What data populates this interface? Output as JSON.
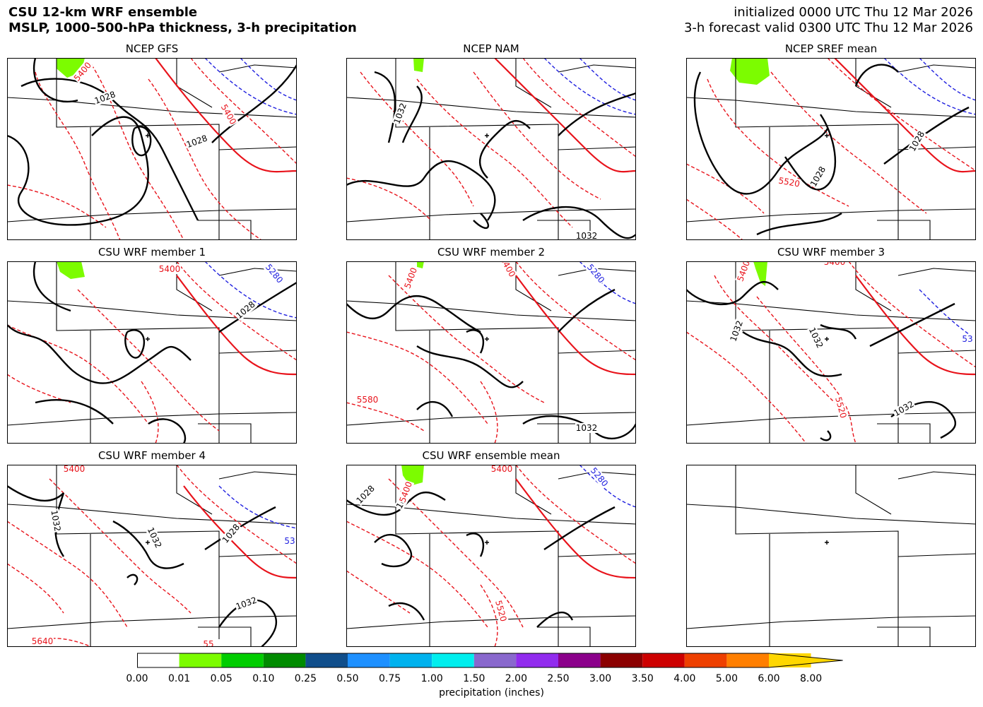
{
  "header": {
    "title_line1": "CSU 12-km WRF ensemble",
    "title_line2": "MSLP, 1000–500-hPa thickness, 3-h precipitation",
    "init_line": "initialized 0000 UTC Thu 12 Mar 2026",
    "valid_line": "3-h forecast valid 0300 UTC Thu 12 Mar 2026"
  },
  "panels": [
    {
      "title": "NCEP GFS",
      "labels": {
        "mslp": [
          "1028",
          "1028"
        ],
        "thk_red": [
          "5400",
          "5400"
        ],
        "thk_blue": []
      }
    },
    {
      "title": "NCEP NAM",
      "labels": {
        "mslp": [
          "1032",
          "1032"
        ],
        "thk_red": [],
        "thk_blue": []
      }
    },
    {
      "title": "NCEP SREF mean",
      "labels": {
        "mslp": [
          "1028",
          "1028"
        ],
        "thk_red": [
          "5520"
        ],
        "thk_blue": []
      }
    },
    {
      "title": "CSU WRF member 1",
      "labels": {
        "mslp": [
          "1028"
        ],
        "thk_red": [
          "5400"
        ],
        "thk_blue": [
          "5280"
        ]
      }
    },
    {
      "title": "CSU WRF member 2",
      "labels": {
        "mslp": [
          "1032"
        ],
        "thk_red": [
          "5400",
          "5400",
          "5580"
        ],
        "thk_blue": [
          "5280"
        ]
      }
    },
    {
      "title": "CSU WRF member 3",
      "labels": {
        "mslp": [
          "1032",
          "1032",
          "1032"
        ],
        "thk_red": [
          "5400",
          "5400",
          "5520"
        ],
        "thk_blue": [
          "53"
        ]
      }
    },
    {
      "title": "CSU WRF member 4",
      "labels": {
        "mslp": [
          "1032",
          "1032",
          "1028",
          "1032"
        ],
        "thk_red": [
          "5400",
          "5640",
          "55"
        ],
        "thk_blue": [
          "53"
        ]
      }
    },
    {
      "title": "CSU WRF ensemble mean",
      "labels": {
        "mslp": [
          "1028",
          "1032"
        ],
        "thk_red": [
          "5400",
          "5400",
          "5520"
        ],
        "thk_blue": [
          "5280"
        ]
      }
    },
    {
      "title": "",
      "labels": {
        "mslp": [],
        "thk_red": [],
        "thk_blue": []
      }
    }
  ],
  "colorbar": {
    "title": "precipitation (inches)",
    "ticks": [
      "0.00",
      "0.01",
      "0.05",
      "0.10",
      "0.25",
      "0.50",
      "0.75",
      "1.00",
      "1.50",
      "2.00",
      "2.50",
      "3.00",
      "3.50",
      "4.00",
      "5.00",
      "6.00",
      "8.00"
    ],
    "colors": [
      "#ffffff",
      "#7cfc00",
      "#00cd00",
      "#008b00",
      "#104e8b",
      "#1e90ff",
      "#00b2ee",
      "#00eeee",
      "#8968cd",
      "#912cee",
      "#8b008b",
      "#8b0000",
      "#cd0000",
      "#ee4000",
      "#ff7f00",
      "#ffd700"
    ]
  },
  "colors": {
    "mslp": "#000000",
    "thk_red": "#e8131b",
    "thk_blue": "#1f1fdf",
    "precip": "#7cfc00"
  }
}
